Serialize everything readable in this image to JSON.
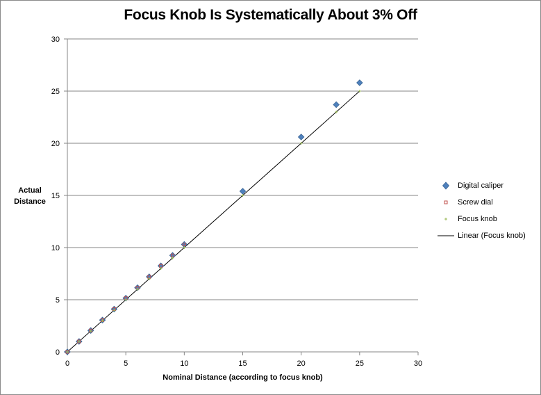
{
  "chart_data": {
    "type": "scatter",
    "title": "Focus Knob Is Systematically About 3% Off",
    "xlabel": "Nominal Distance  (according to focus knob)",
    "ylabel": "Actual Distance",
    "xlim": [
      0,
      30
    ],
    "ylim": [
      0,
      30
    ],
    "x_ticks": [
      0,
      5,
      10,
      15,
      20,
      25,
      30
    ],
    "y_ticks": [
      0,
      5,
      10,
      15,
      20,
      25,
      30
    ],
    "grid": "horizontal major gridlines",
    "legend_position": "right",
    "series": [
      {
        "name": "Digital caliper",
        "marker": "diamond",
        "color": "#4F81BD",
        "points": [
          [
            0,
            0
          ],
          [
            1,
            1
          ],
          [
            2,
            2.05
          ],
          [
            3,
            3.05
          ],
          [
            4,
            4.1
          ],
          [
            5,
            5.15
          ],
          [
            6,
            6.15
          ],
          [
            7,
            7.2
          ],
          [
            8,
            8.25
          ],
          [
            9,
            9.25
          ],
          [
            10,
            10.3
          ],
          [
            15,
            15.4
          ],
          [
            20,
            20.6
          ],
          [
            23,
            23.7
          ],
          [
            25,
            25.8
          ]
        ]
      },
      {
        "name": "Screw dial",
        "marker": "square",
        "color": "#C0504D",
        "points": [
          [
            0,
            0
          ],
          [
            1,
            1
          ],
          [
            2,
            2.05
          ],
          [
            3,
            3.05
          ],
          [
            4,
            4.1
          ],
          [
            5,
            5.15
          ],
          [
            6,
            6.15
          ],
          [
            7,
            7.2
          ],
          [
            8,
            8.25
          ],
          [
            9,
            9.25
          ],
          [
            10,
            10.3
          ]
        ]
      },
      {
        "name": "Focus knob",
        "marker": "plus",
        "color": "#9BBB59",
        "points": [
          [
            0,
            0
          ],
          [
            1,
            1
          ],
          [
            2,
            2
          ],
          [
            3,
            3
          ],
          [
            4,
            4
          ],
          [
            5,
            5
          ],
          [
            6,
            6
          ],
          [
            7,
            7
          ],
          [
            8,
            8
          ],
          [
            9,
            9
          ],
          [
            10,
            10
          ],
          [
            15,
            15
          ],
          [
            20,
            20
          ],
          [
            23,
            23
          ],
          [
            25,
            25
          ]
        ]
      },
      {
        "name": "Linear (Focus knob)",
        "type": "line",
        "color": "#000000",
        "points": [
          [
            0,
            0
          ],
          [
            25,
            25
          ]
        ]
      }
    ]
  }
}
